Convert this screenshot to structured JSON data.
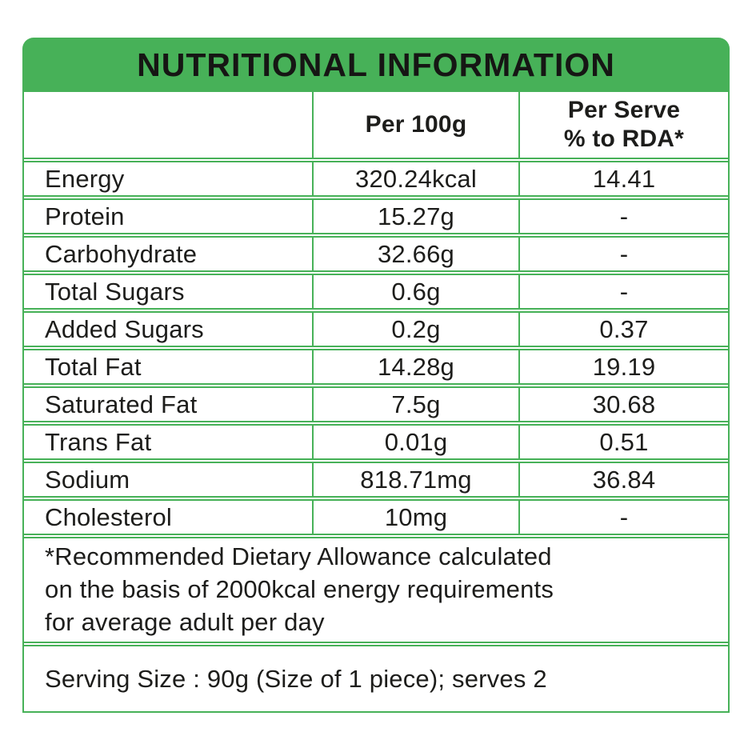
{
  "header": {
    "title": "NUTRITIONAL INFORMATION"
  },
  "table": {
    "columns": {
      "nutrient": "",
      "per_100g": "Per 100g",
      "per_serve_line1": "Per Serve",
      "per_serve_line2": "% to RDA*"
    },
    "rows": [
      {
        "name": "Energy",
        "per100g": "320.24kcal",
        "rda": "14.41"
      },
      {
        "name": "Protein",
        "per100g": "15.27g",
        "rda": "-"
      },
      {
        "name": "Carbohydrate",
        "per100g": "32.66g",
        "rda": "-"
      },
      {
        "name": "Total Sugars",
        "per100g": "0.6g",
        "rda": "-"
      },
      {
        "name": "Added Sugars",
        "per100g": "0.2g",
        "rda": "0.37"
      },
      {
        "name": "Total Fat",
        "per100g": "14.28g",
        "rda": "19.19"
      },
      {
        "name": "Saturated Fat",
        "per100g": "7.5g",
        "rda": "30.68"
      },
      {
        "name": "Trans Fat",
        "per100g": "0.01g",
        "rda": "0.51"
      },
      {
        "name": "Sodium",
        "per100g": "818.71mg",
        "rda": "36.84"
      },
      {
        "name": "Cholesterol",
        "per100g": "10mg",
        "rda": "-"
      }
    ]
  },
  "notes": {
    "rda_footnote": "*Recommended Dietary Allowance calculated on the basis of 2000kcal energy requirements for average adult per day",
    "serving_info": "Serving Size : 90g (Size of 1 piece); serves 2"
  },
  "colors": {
    "green": "#47B158",
    "text": "#1D1D1B",
    "background": "#FFFFFF"
  }
}
